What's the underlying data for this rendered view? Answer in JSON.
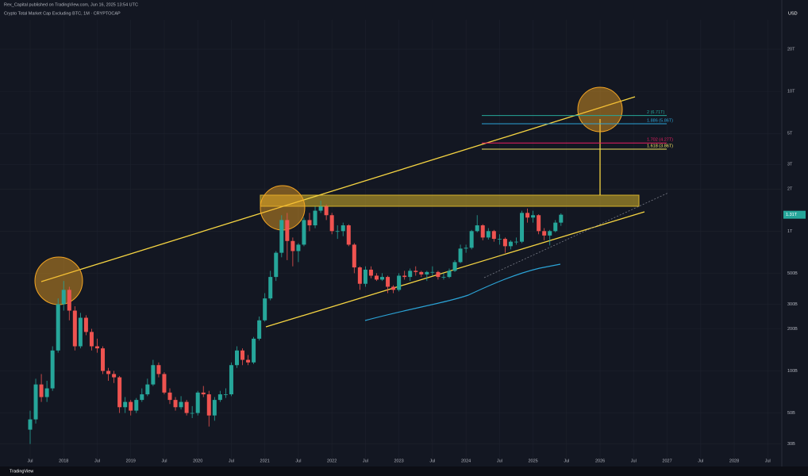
{
  "header": {
    "publisher": "Rex_Capital published on TradingView.com, Jun 16, 2025 13:54 UTC",
    "footer": "TradingView"
  },
  "chart_data": {
    "type": "candlestick",
    "title": "Crypto Total Market Cap Excluding BTC, 1M · CRYPTOCAP",
    "currency": "USD",
    "last_price_label": "1.31T",
    "up_color": "#26a69a",
    "down_color": "#ef5350",
    "log_scale": true,
    "grid": true,
    "x": [
      "2017-07",
      "2017-08",
      "2017-09",
      "2017-10",
      "2017-11",
      "2017-12",
      "2018-01",
      "2018-02",
      "2018-03",
      "2018-04",
      "2018-05",
      "2018-06",
      "2018-07",
      "2018-08",
      "2018-09",
      "2018-10",
      "2018-11",
      "2018-12",
      "2019-01",
      "2019-02",
      "2019-03",
      "2019-04",
      "2019-05",
      "2019-06",
      "2019-07",
      "2019-08",
      "2019-09",
      "2019-10",
      "2019-11",
      "2019-12",
      "2020-01",
      "2020-02",
      "2020-03",
      "2020-04",
      "2020-05",
      "2020-06",
      "2020-07",
      "2020-08",
      "2020-09",
      "2020-10",
      "2020-11",
      "2020-12",
      "2021-01",
      "2021-02",
      "2021-03",
      "2021-04",
      "2021-05",
      "2021-06",
      "2021-07",
      "2021-08",
      "2021-09",
      "2021-10",
      "2021-11",
      "2021-12",
      "2022-01",
      "2022-02",
      "2022-03",
      "2022-04",
      "2022-05",
      "2022-06",
      "2022-07",
      "2022-08",
      "2022-09",
      "2022-10",
      "2022-11",
      "2022-12",
      "2023-01",
      "2023-02",
      "2023-03",
      "2023-04",
      "2023-05",
      "2023-06",
      "2023-07",
      "2023-08",
      "2023-09",
      "2023-10",
      "2023-11",
      "2023-12",
      "2024-01",
      "2024-02",
      "2024-03",
      "2024-04",
      "2024-05",
      "2024-06",
      "2024-07",
      "2024-08",
      "2024-09",
      "2024-10",
      "2024-11",
      "2024-12",
      "2025-01",
      "2025-02",
      "2025-03",
      "2025-04",
      "2025-05",
      "2025-06"
    ],
    "open": [
      38,
      45,
      80,
      65,
      75,
      140,
      300,
      380,
      270,
      150,
      240,
      190,
      150,
      145,
      100,
      95,
      90,
      55,
      60,
      52,
      62,
      68,
      80,
      110,
      95,
      70,
      62,
      55,
      60,
      50,
      50,
      70,
      68,
      48,
      62,
      68,
      68,
      110,
      140,
      120,
      115,
      170,
      230,
      330,
      470,
      700,
      1200,
      850,
      720,
      800,
      1200,
      1100,
      1400,
      1500,
      1300,
      1000,
      1000,
      1100,
      800,
      550,
      420,
      530,
      480,
      450,
      470,
      400,
      380,
      480,
      470,
      520,
      510,
      490,
      510,
      510,
      470,
      470,
      520,
      600,
      750,
      760,
      1000,
      1100,
      900,
      1000,
      880,
      880,
      780,
      840,
      840,
      1350,
      1250,
      1300,
      1000,
      930,
      1000,
      1150
    ],
    "high": [
      52,
      88,
      95,
      85,
      150,
      330,
      440,
      400,
      290,
      260,
      250,
      200,
      170,
      150,
      105,
      100,
      92,
      65,
      62,
      64,
      75,
      88,
      120,
      115,
      98,
      75,
      65,
      66,
      62,
      56,
      72,
      78,
      72,
      65,
      72,
      75,
      115,
      150,
      145,
      130,
      175,
      245,
      360,
      520,
      720,
      1300,
      1350,
      900,
      820,
      1250,
      1350,
      1500,
      1650,
      1550,
      1350,
      1100,
      1150,
      1120,
      820,
      560,
      560,
      560,
      500,
      500,
      480,
      410,
      500,
      520,
      540,
      560,
      520,
      520,
      560,
      520,
      500,
      540,
      620,
      800,
      800,
      1020,
      1300,
      1120,
      1050,
      1020,
      950,
      900,
      860,
      900,
      1400,
      1450,
      1400,
      1320,
      1050,
      1020,
      1200,
      1340
    ],
    "low": [
      30,
      42,
      60,
      60,
      72,
      135,
      270,
      230,
      140,
      145,
      180,
      140,
      135,
      95,
      85,
      82,
      50,
      50,
      48,
      50,
      60,
      66,
      78,
      90,
      68,
      58,
      52,
      53,
      48,
      46,
      48,
      65,
      40,
      44,
      60,
      64,
      66,
      105,
      110,
      110,
      112,
      165,
      225,
      320,
      440,
      650,
      620,
      560,
      600,
      780,
      1000,
      1050,
      1350,
      1200,
      950,
      880,
      920,
      780,
      500,
      380,
      400,
      460,
      440,
      440,
      360,
      360,
      370,
      450,
      440,
      480,
      470,
      440,
      480,
      450,
      450,
      460,
      510,
      590,
      700,
      740,
      980,
      860,
      870,
      840,
      800,
      700,
      740,
      800,
      820,
      1150,
      1150,
      950,
      860,
      790,
      980,
      1090
    ],
    "close": [
      45,
      80,
      65,
      75,
      140,
      300,
      380,
      270,
      150,
      240,
      190,
      150,
      145,
      100,
      95,
      90,
      55,
      60,
      52,
      62,
      68,
      80,
      110,
      95,
      70,
      62,
      55,
      60,
      50,
      50,
      70,
      68,
      48,
      62,
      68,
      68,
      110,
      140,
      120,
      115,
      170,
      230,
      330,
      470,
      700,
      1200,
      850,
      720,
      800,
      1200,
      1100,
      1400,
      1500,
      1300,
      1000,
      1000,
      1100,
      800,
      550,
      420,
      530,
      480,
      450,
      470,
      400,
      380,
      480,
      470,
      520,
      510,
      490,
      510,
      510,
      470,
      470,
      520,
      600,
      750,
      760,
      1000,
      1100,
      900,
      1000,
      880,
      880,
      780,
      840,
      840,
      1350,
      1250,
      1300,
      1000,
      930,
      1000,
      1150,
      1310
    ],
    "ylim": [
      23,
      37000
    ],
    "yticks": [
      {
        "value": 30,
        "label": "30B"
      },
      {
        "value": 50,
        "label": "50B"
      },
      {
        "value": 100,
        "label": "100B"
      },
      {
        "value": 200,
        "label": "200B"
      },
      {
        "value": 300,
        "label": "300B"
      },
      {
        "value": 500,
        "label": "500B"
      },
      {
        "value": 1000,
        "label": "1T"
      },
      {
        "value": 2000,
        "label": "2T"
      },
      {
        "value": 3000,
        "label": "3T"
      },
      {
        "value": 5000,
        "label": "5T"
      },
      {
        "value": 10000,
        "label": "10T"
      },
      {
        "value": 20000,
        "label": "20T"
      }
    ],
    "xticks": [
      {
        "value": "2017-07",
        "label": "Jul"
      },
      {
        "value": "2018-01",
        "label": "2018"
      },
      {
        "value": "2018-07",
        "label": "Jul"
      },
      {
        "value": "2019-01",
        "label": "2019"
      },
      {
        "value": "2019-07",
        "label": "Jul"
      },
      {
        "value": "2020-01",
        "label": "2020"
      },
      {
        "value": "2020-07",
        "label": "Jul"
      },
      {
        "value": "2021-01",
        "label": "2021"
      },
      {
        "value": "2021-07",
        "label": "Jul"
      },
      {
        "value": "2022-01",
        "label": "2022"
      },
      {
        "value": "2022-07",
        "label": "Jul"
      },
      {
        "value": "2023-01",
        "label": "2023"
      },
      {
        "value": "2023-07",
        "label": "Jul"
      },
      {
        "value": "2024-01",
        "label": "2024"
      },
      {
        "value": "2024-07",
        "label": "Jul"
      },
      {
        "value": "2025-01",
        "label": "2025"
      },
      {
        "value": "2025-07",
        "label": "Jul"
      },
      {
        "value": "2026-01",
        "label": "2026"
      },
      {
        "value": "2026-07",
        "label": "Jul"
      },
      {
        "value": "2027-01",
        "label": "2027"
      },
      {
        "value": "2027-07",
        "label": "Jul"
      },
      {
        "value": "2028-01",
        "label": "2028"
      },
      {
        "value": "2028-07",
        "label": "Jul"
      }
    ],
    "annotations": [
      {
        "label": "2 (6.71T)",
        "value": 6710,
        "color": "#26a69a"
      },
      {
        "label": "1.886 (5.86T)",
        "value": 5860,
        "color": "#2ba3d6"
      },
      {
        "label": "1.702 (4.27T)",
        "value": 4270,
        "color": "#e91e63"
      },
      {
        "label": "1.618 (3.86T)",
        "value": 3860,
        "color": "#f5e663"
      }
    ]
  }
}
